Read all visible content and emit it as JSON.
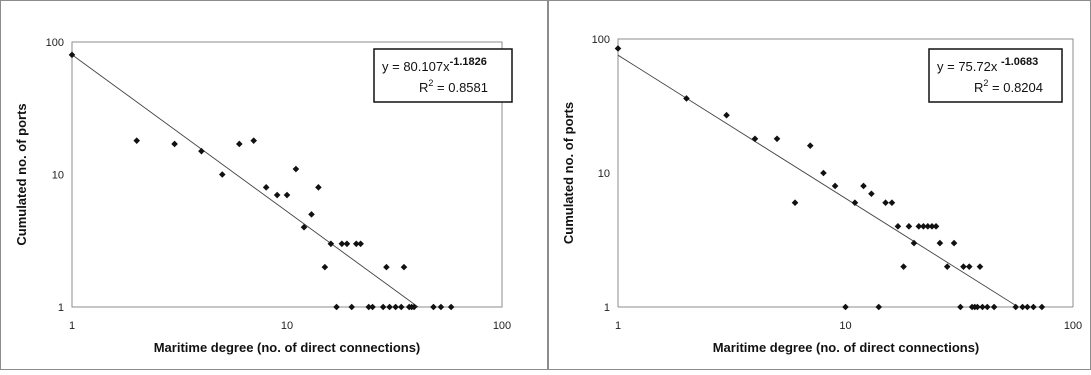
{
  "chart_data": [
    {
      "type": "scatter",
      "xscale": "log",
      "yscale": "log",
      "xlabel": "Maritime degree (no. of direct connections)",
      "ylabel": "Cumulated no. of ports",
      "xlim": [
        1,
        100
      ],
      "ylim": [
        1,
        100
      ],
      "xticks": [
        "1",
        "10",
        "100"
      ],
      "yticks": [
        "1",
        "10",
        "100"
      ],
      "grid": false,
      "trendline": {
        "equation_prefix": "y = 80.107x",
        "exponent": "-1.1826",
        "r2_prefix": "R",
        "r2_sup": "2",
        "r2_suffix": " = 0.8581",
        "a": 80.107,
        "b": -1.1826
      },
      "points": [
        [
          1,
          80
        ],
        [
          2,
          18
        ],
        [
          3,
          17
        ],
        [
          4,
          15
        ],
        [
          5,
          10
        ],
        [
          6,
          17
        ],
        [
          7,
          18
        ],
        [
          8,
          8
        ],
        [
          9,
          7
        ],
        [
          10,
          7
        ],
        [
          11,
          11
        ],
        [
          12,
          4
        ],
        [
          13,
          5
        ],
        [
          14,
          8
        ],
        [
          15,
          2
        ],
        [
          16,
          3
        ],
        [
          17,
          1
        ],
        [
          18,
          3
        ],
        [
          19,
          3
        ],
        [
          20,
          1
        ],
        [
          21,
          3
        ],
        [
          22,
          3
        ],
        [
          24,
          1
        ],
        [
          25,
          1
        ],
        [
          28,
          1
        ],
        [
          29,
          2
        ],
        [
          30,
          1
        ],
        [
          32,
          1
        ],
        [
          34,
          1
        ],
        [
          35,
          2
        ],
        [
          37,
          1
        ],
        [
          38,
          1
        ],
        [
          39,
          1
        ],
        [
          48,
          1
        ],
        [
          52,
          1
        ],
        [
          58,
          1
        ]
      ]
    },
    {
      "type": "scatter",
      "xscale": "log",
      "yscale": "log",
      "xlabel": "Maritime degree (no. of direct connections)",
      "ylabel": "Cumulated no. of ports",
      "xlim": [
        1,
        100
      ],
      "ylim": [
        1,
        100
      ],
      "xticks": [
        "1",
        "10",
        "100"
      ],
      "yticks": [
        "1",
        "10",
        "100"
      ],
      "grid": false,
      "trendline": {
        "equation_prefix": "y = 75.72x ",
        "exponent": "-1.0683",
        "r2_prefix": "R",
        "r2_sup": "2",
        "r2_suffix": " = 0.8204",
        "a": 75.72,
        "b": -1.0683
      },
      "points": [
        [
          1,
          85
        ],
        [
          2,
          36
        ],
        [
          3,
          27
        ],
        [
          4,
          18
        ],
        [
          5,
          18
        ],
        [
          6,
          6
        ],
        [
          7,
          16
        ],
        [
          8,
          10
        ],
        [
          9,
          8
        ],
        [
          10,
          1
        ],
        [
          11,
          6
        ],
        [
          12,
          8
        ],
        [
          13,
          7
        ],
        [
          14,
          1
        ],
        [
          15,
          6
        ],
        [
          16,
          6
        ],
        [
          17,
          4
        ],
        [
          18,
          2
        ],
        [
          19,
          4
        ],
        [
          20,
          3
        ],
        [
          21,
          4
        ],
        [
          22,
          4
        ],
        [
          23,
          4
        ],
        [
          24,
          4
        ],
        [
          25,
          4
        ],
        [
          26,
          3
        ],
        [
          28,
          2
        ],
        [
          30,
          3
        ],
        [
          32,
          1
        ],
        [
          33,
          2
        ],
        [
          35,
          2
        ],
        [
          36,
          1
        ],
        [
          37,
          1
        ],
        [
          38,
          1
        ],
        [
          39,
          2
        ],
        [
          40,
          1
        ],
        [
          42,
          1
        ],
        [
          45,
          1
        ],
        [
          56,
          1
        ],
        [
          60,
          1
        ],
        [
          63,
          1
        ],
        [
          67,
          1
        ],
        [
          73,
          1
        ]
      ]
    }
  ]
}
